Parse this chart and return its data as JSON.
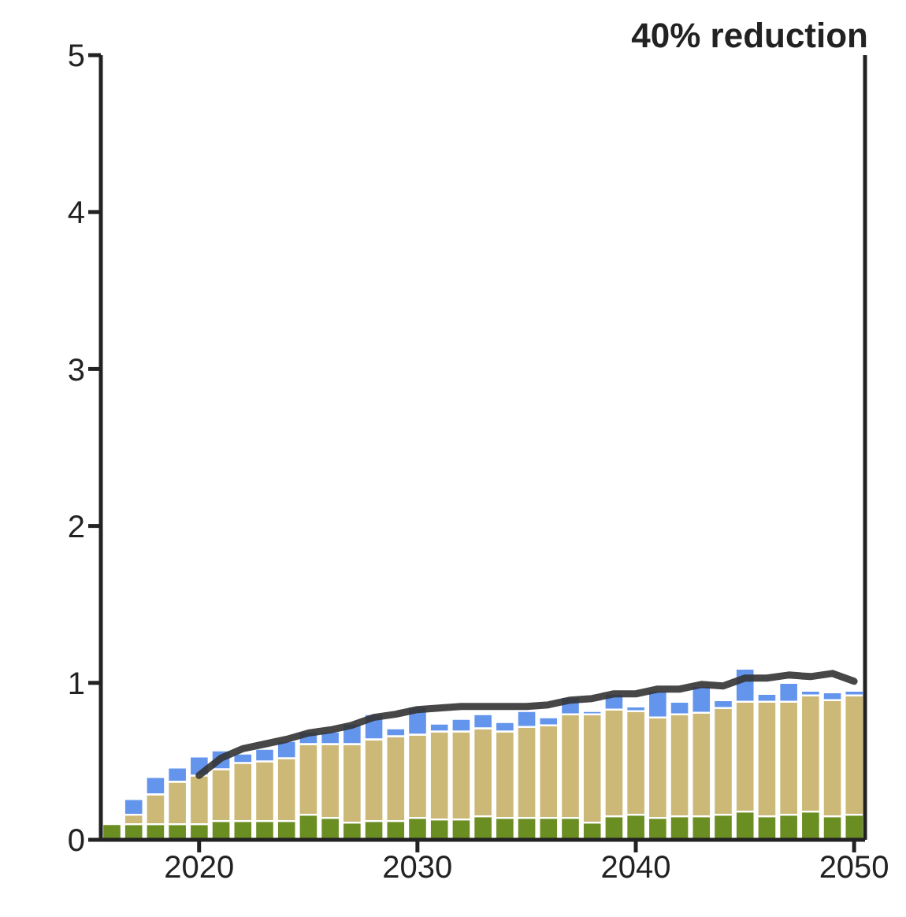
{
  "chart_data": {
    "type": "bar",
    "title": "40% reduction",
    "stacked": true,
    "x": [
      2016,
      2017,
      2018,
      2019,
      2020,
      2021,
      2022,
      2023,
      2024,
      2025,
      2026,
      2027,
      2028,
      2029,
      2030,
      2031,
      2032,
      2033,
      2034,
      2035,
      2036,
      2037,
      2038,
      2039,
      2040,
      2041,
      2042,
      2043,
      2044,
      2045,
      2046,
      2047,
      2048,
      2049,
      2050
    ],
    "series": [
      {
        "color": "#6b8e23",
        "values": [
          0.1,
          0.1,
          0.1,
          0.1,
          0.1,
          0.12,
          0.12,
          0.12,
          0.12,
          0.16,
          0.14,
          0.11,
          0.12,
          0.12,
          0.14,
          0.13,
          0.13,
          0.15,
          0.14,
          0.14,
          0.14,
          0.14,
          0.11,
          0.15,
          0.16,
          0.14,
          0.15,
          0.15,
          0.16,
          0.18,
          0.15,
          0.16,
          0.18,
          0.15,
          0.16
        ]
      },
      {
        "color": "#cdb977",
        "values": [
          null,
          0.06,
          0.19,
          0.27,
          0.31,
          0.33,
          0.37,
          0.38,
          0.4,
          0.45,
          0.47,
          0.5,
          0.52,
          0.54,
          0.53,
          0.56,
          0.56,
          0.56,
          0.55,
          0.58,
          0.59,
          0.66,
          0.69,
          0.68,
          0.66,
          0.64,
          0.65,
          0.66,
          0.68,
          0.7,
          0.73,
          0.72,
          0.74,
          0.74,
          0.76
        ]
      },
      {
        "color": "#6495ed",
        "values": [
          null,
          0.1,
          0.11,
          0.09,
          0.12,
          0.12,
          0.06,
          0.08,
          0.11,
          0.08,
          0.08,
          0.13,
          0.16,
          0.05,
          0.18,
          0.05,
          0.08,
          0.09,
          0.06,
          0.1,
          0.05,
          0.11,
          0.02,
          0.1,
          0.03,
          0.17,
          0.08,
          0.17,
          0.05,
          0.21,
          0.05,
          0.12,
          0.03,
          0.05,
          0.03
        ]
      },
      {
        "type": "line",
        "color": "#333333",
        "values": [
          null,
          null,
          null,
          null,
          0.41,
          0.52,
          0.58,
          0.61,
          0.64,
          0.68,
          0.7,
          0.73,
          0.78,
          0.8,
          0.83,
          0.84,
          0.85,
          0.85,
          0.85,
          0.85,
          0.86,
          0.89,
          0.9,
          0.93,
          0.93,
          0.96,
          0.96,
          0.99,
          0.98,
          1.03,
          1.03,
          1.05,
          1.04,
          1.06,
          1.01
        ]
      }
    ],
    "xlim": [
      2015.5,
      2050.5
    ],
    "xticks": [
      2020,
      2030,
      2040,
      2050
    ],
    "ylim": [
      0,
      5
    ],
    "yticks": [
      0,
      1,
      2,
      3,
      4,
      5
    ],
    "grid": false,
    "legend": false,
    "marker": "none",
    "line_style": "solid"
  }
}
